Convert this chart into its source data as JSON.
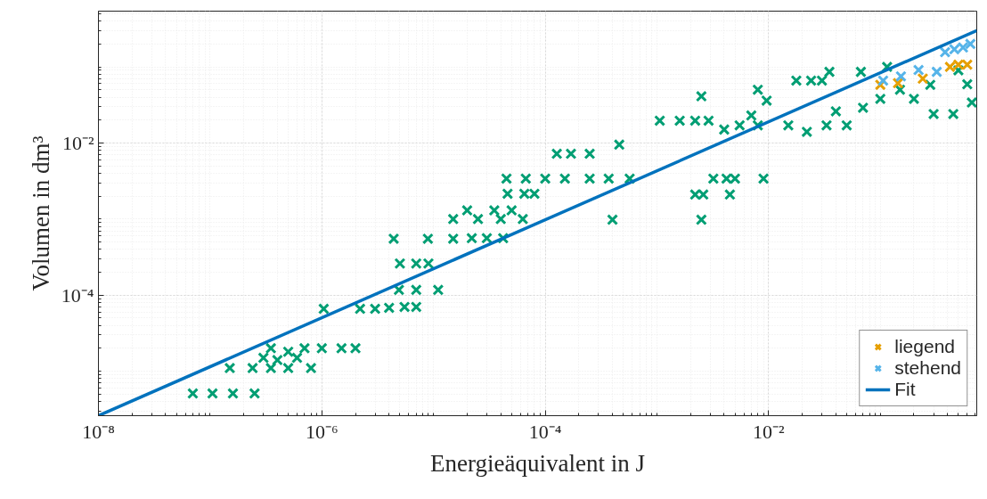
{
  "chart_data": {
    "type": "scatter",
    "xlabel": "Energieäquivalent in J",
    "ylabel": "Volumen in dm³",
    "log": "xy",
    "xlim": [
      1e-08,
      0.73
    ],
    "ylim": [
      2.6e-06,
      0.54
    ],
    "xticks": [
      {
        "value": 1e-08,
        "label": "10⁻⁸"
      },
      {
        "value": 1e-06,
        "label": "10⁻⁶"
      },
      {
        "value": 0.0001,
        "label": "10⁻⁴"
      },
      {
        "value": 0.01,
        "label": "10⁻²"
      }
    ],
    "yticks": [
      {
        "value": 0.0001,
        "label": "10⁻⁴"
      },
      {
        "value": 0.01,
        "label": "10⁻²"
      }
    ],
    "grid": true,
    "legend": "bottom right",
    "marker": "cross",
    "series": [
      {
        "color": "#009e73",
        "x": [
          7e-08,
          1.05e-07,
          1.6e-07,
          2.5e-07,
          1.5e-07,
          2.4e-07,
          3.5e-07,
          5e-07,
          8e-07,
          3e-07,
          4e-07,
          6e-07,
          3.5e-07,
          5e-07,
          7e-07,
          1e-06,
          1.5e-06,
          2e-06,
          1.04e-06,
          2.2e-06,
          3e-06,
          4e-06,
          5.5e-06,
          7e-06,
          4.9e-06,
          7e-06,
          1.1e-05,
          5e-06,
          7e-06,
          9e-06,
          4.4e-06,
          8.9e-06,
          1.5e-05,
          1.5e-05,
          2.5e-05,
          4e-05,
          6.3e-05,
          2e-05,
          3.5e-05,
          5e-05,
          2.2e-05,
          3e-05,
          4.2e-05,
          4.6e-05,
          6.5e-05,
          8e-05,
          4.5e-05,
          6.7e-05,
          0.0001,
          0.00015,
          0.00025,
          0.00037,
          0.000127,
          0.00017,
          0.00025,
          0.00046,
          0.00057,
          0.0004,
          0.00106,
          0.0016,
          0.0022,
          0.0029,
          0.0025,
          0.0025,
          0.0022,
          0.0026,
          0.0045,
          0.0032,
          0.0042,
          0.005,
          0.009,
          0.004,
          0.0055,
          0.007,
          0.008,
          0.0096,
          0.008,
          0.0177,
          0.024,
          0.03,
          0.035,
          0.067,
          0.115,
          0.015,
          0.022,
          0.033,
          0.04,
          0.05,
          0.07,
          0.1,
          0.15,
          0.2,
          0.28,
          0.3,
          0.6,
          0.66,
          0.45,
          0.5
        ],
        "values": [
          5.1e-06,
          5.1e-06,
          5.1e-06,
          5.1e-06,
          1.1e-05,
          1.1e-05,
          1.1e-05,
          1.1e-05,
          1.1e-05,
          1.5e-05,
          1.4e-05,
          1.5e-05,
          2e-05,
          1.8e-05,
          2e-05,
          2e-05,
          2e-05,
          2e-05,
          6.6e-05,
          6.6e-05,
          6.6e-05,
          6.8e-05,
          7e-05,
          7e-05,
          0.000117,
          0.000117,
          0.000117,
          0.00026,
          0.00026,
          0.00026,
          0.00055,
          0.00055,
          0.00055,
          0.001,
          0.001,
          0.001,
          0.001,
          0.0013,
          0.0013,
          0.0013,
          0.00056,
          0.00056,
          0.00056,
          0.00215,
          0.00215,
          0.00215,
          0.0034,
          0.0034,
          0.0034,
          0.0034,
          0.0034,
          0.0034,
          0.0072,
          0.0072,
          0.0072,
          0.0095,
          0.0034,
          0.00098,
          0.0196,
          0.0196,
          0.0196,
          0.0196,
          0.041,
          0.00098,
          0.0021,
          0.0021,
          0.0021,
          0.0034,
          0.0034,
          0.0034,
          0.0034,
          0.015,
          0.017,
          0.023,
          0.05,
          0.036,
          0.017,
          0.066,
          0.066,
          0.066,
          0.086,
          0.086,
          0.1,
          0.017,
          0.014,
          0.017,
          0.026,
          0.017,
          0.029,
          0.038,
          0.05,
          0.038,
          0.058,
          0.024,
          0.059,
          0.034,
          0.024,
          0.09
        ]
      },
      {
        "name": "liegend",
        "color": "#e69f00",
        "x": [
          0.1,
          0.144,
          0.24,
          0.42,
          0.6,
          0.5
        ],
        "values": [
          0.058,
          0.061,
          0.07,
          0.1,
          0.107,
          0.107
        ]
      },
      {
        "name": "stehend",
        "color": "#56b4e9",
        "x": [
          0.106,
          0.153,
          0.22,
          0.32,
          0.38,
          0.46,
          0.55,
          0.64
        ],
        "values": [
          0.066,
          0.075,
          0.091,
          0.086,
          0.156,
          0.17,
          0.18,
          0.2
        ]
      },
      {
        "name": "Fit",
        "type": "line",
        "color": "#0072bd",
        "marker": "none",
        "line_style": "solid",
        "x": [
          1e-08,
          0.73
        ],
        "values": [
          2.6e-06,
          0.3
        ]
      }
    ]
  }
}
